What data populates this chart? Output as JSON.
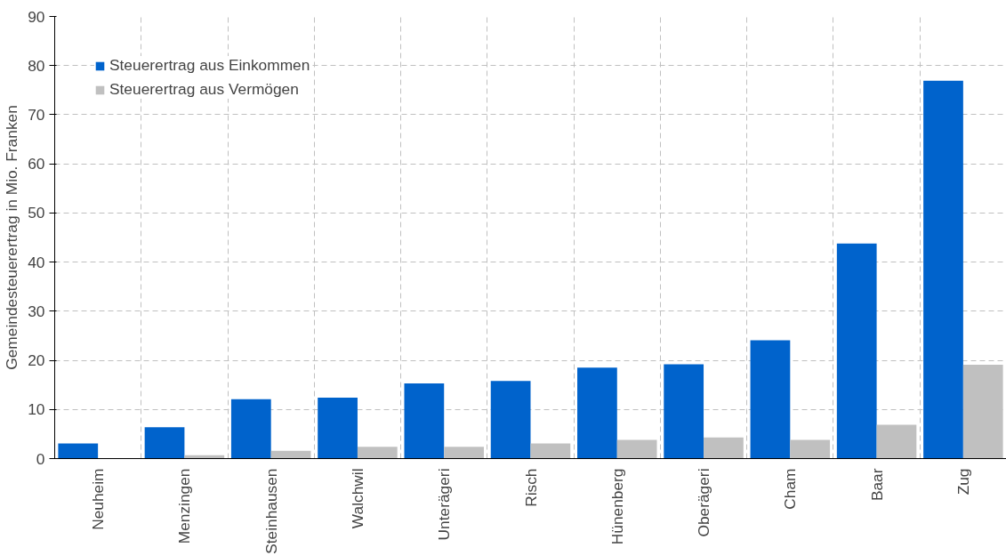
{
  "chart_data": {
    "type": "bar",
    "ylabel": "Gemeindesteuerertrag in Mio. Franken",
    "categories": [
      "Neuheim",
      "Menzingen",
      "Steinhausen",
      "Walchwil",
      "Unterägeri",
      "Risch",
      "Hünenberg",
      "Oberägeri",
      "Cham",
      "Baar",
      "Zug"
    ],
    "series": [
      {
        "name": "Steuerertrag aus Einkommen",
        "color": "#0063cc",
        "values": [
          3.1,
          6.4,
          12.1,
          12.4,
          15.3,
          15.8,
          18.5,
          19.2,
          24.1,
          43.8,
          76.9
        ]
      },
      {
        "name": "Steuerertrag aus Vermögen",
        "color": "#c0c0c0",
        "values": [
          null,
          0.7,
          1.6,
          2.4,
          2.4,
          3.1,
          3.8,
          4.3,
          3.8,
          6.9,
          19.1
        ]
      }
    ],
    "ylim": [
      0,
      90
    ],
    "yticks": [
      0,
      10,
      20,
      30,
      40,
      50,
      60,
      70,
      80,
      90
    ],
    "grid": true,
    "legend": "top left"
  }
}
